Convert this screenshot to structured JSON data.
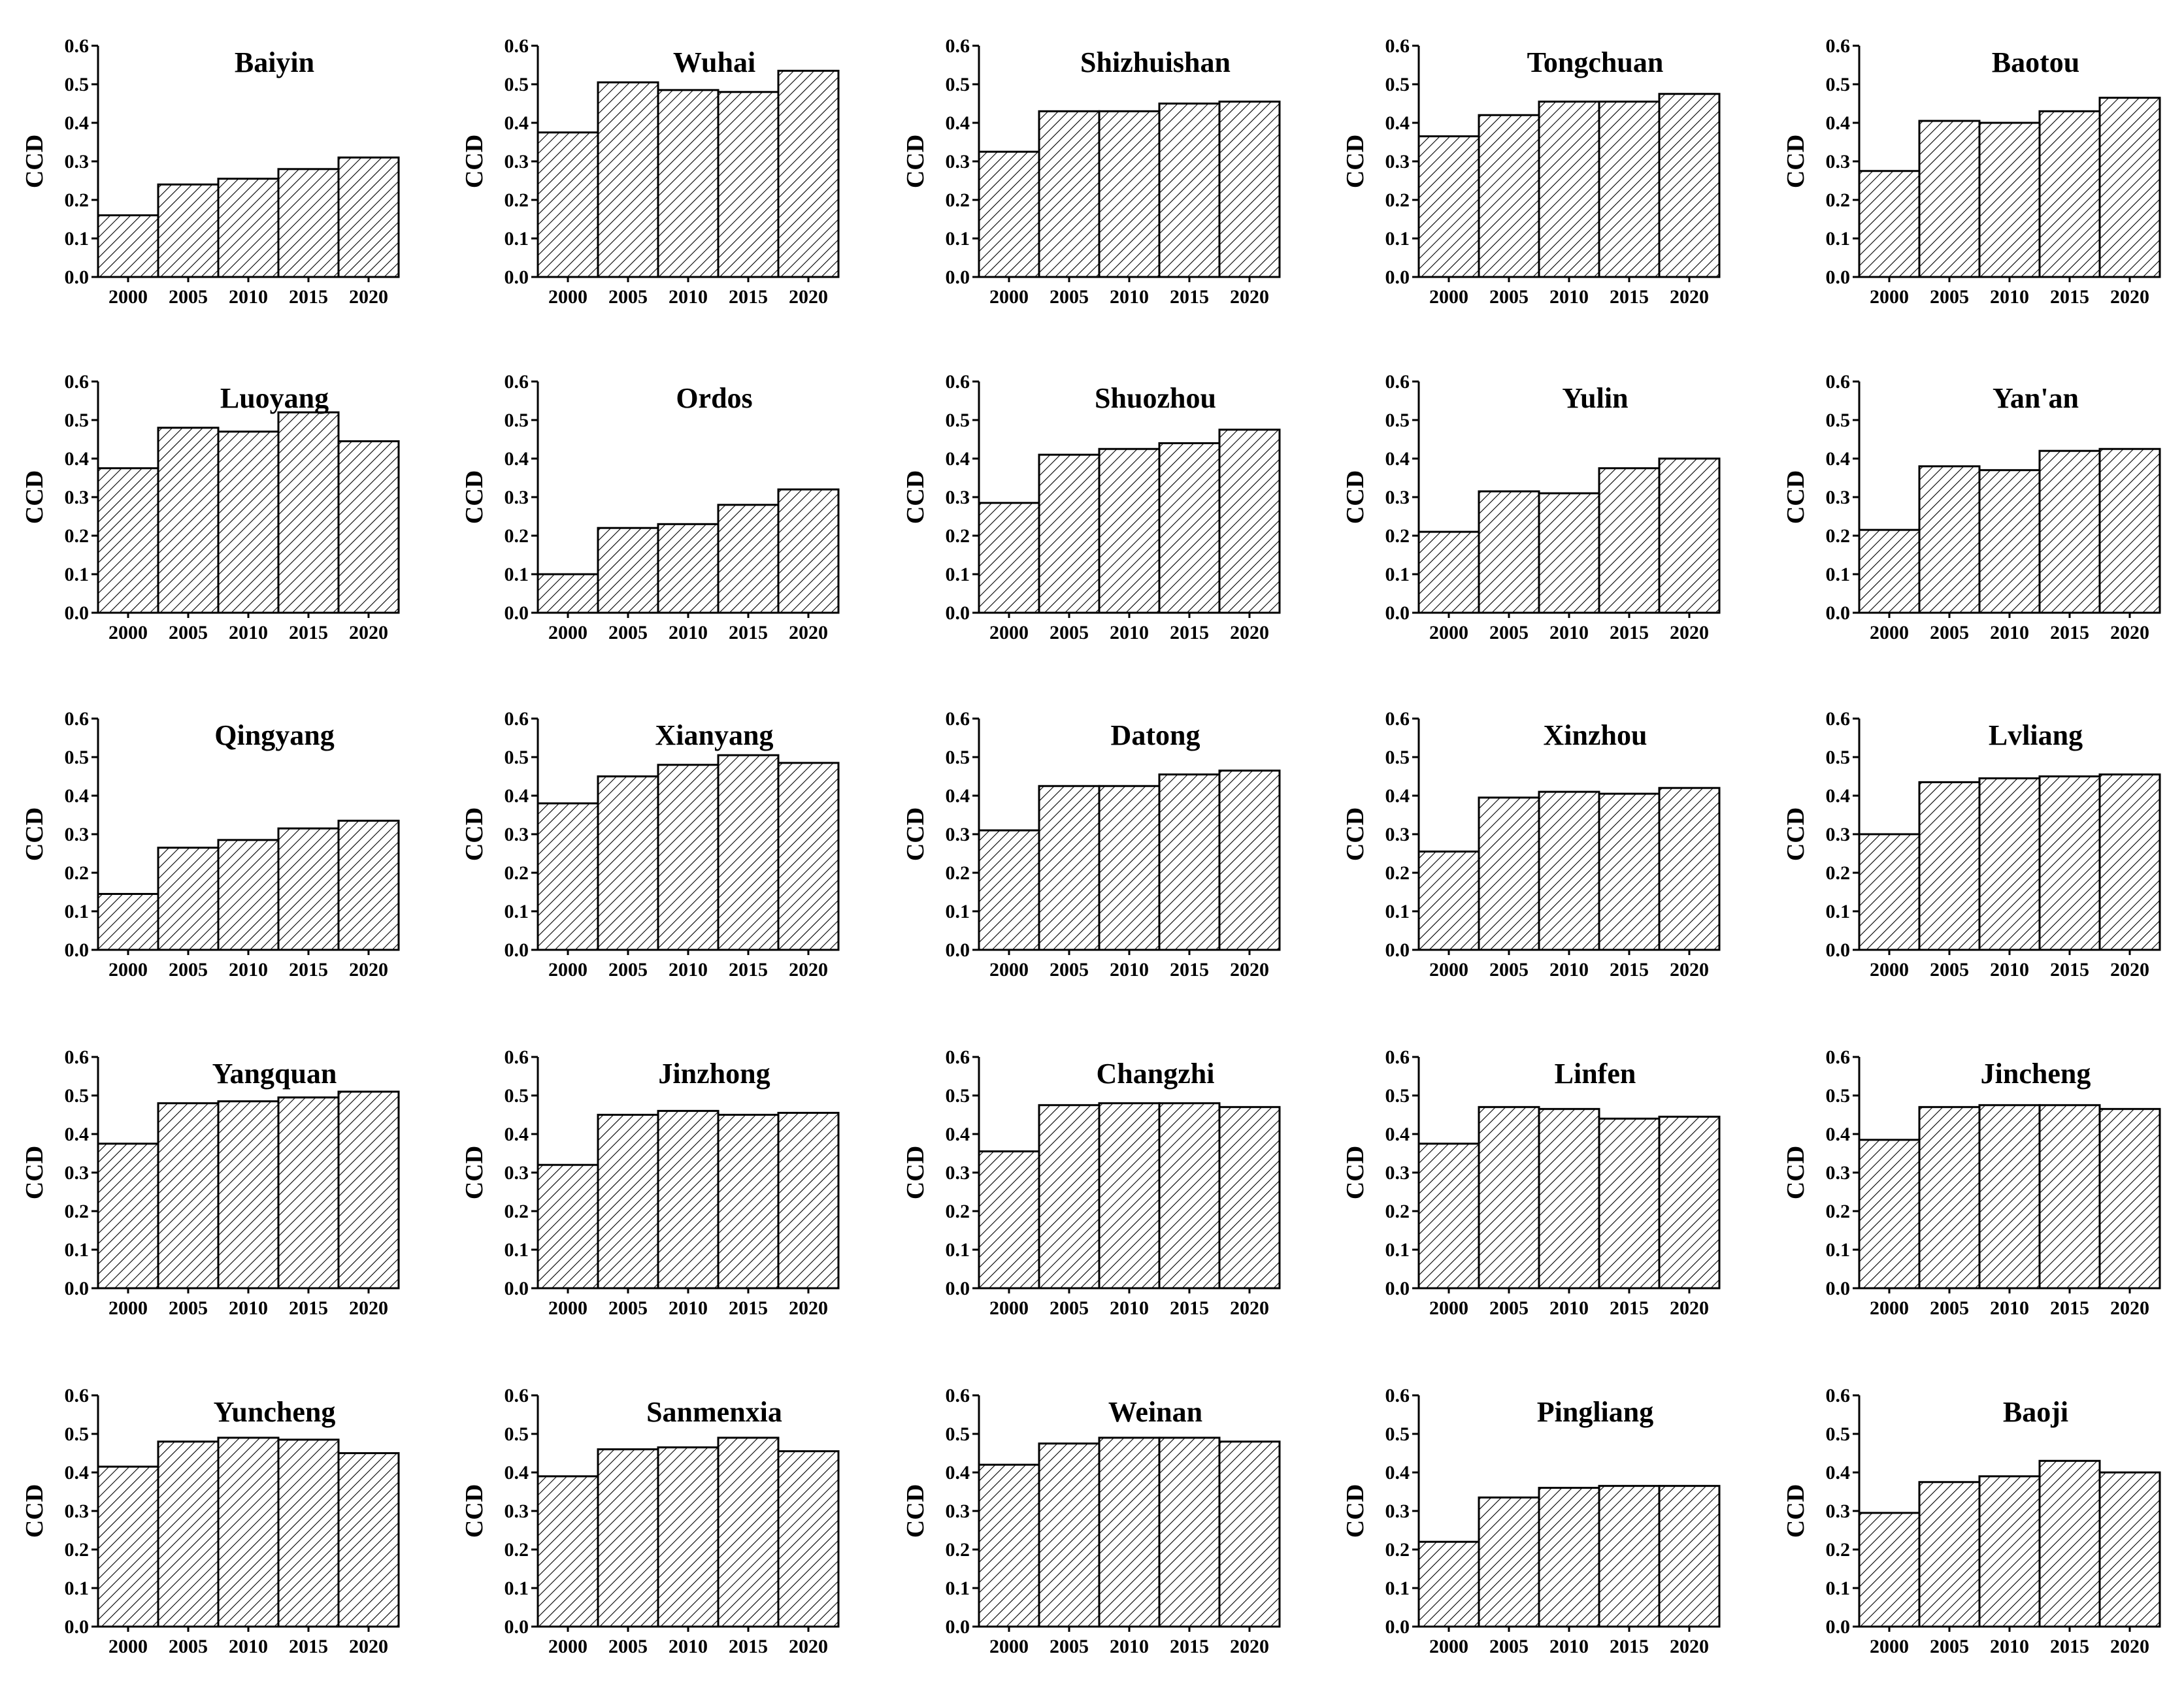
{
  "chart_data": [
    {
      "type": "bar",
      "title": "Baiyin",
      "ylabel": "CCD",
      "xlabel": "",
      "categories": [
        "2000",
        "2005",
        "2010",
        "2015",
        "2020"
      ],
      "values": [
        0.16,
        0.24,
        0.255,
        0.28,
        0.31
      ],
      "ylim": [
        0,
        0.6
      ],
      "yticks": [
        "0.0",
        "0.1",
        "0.2",
        "0.3",
        "0.4",
        "0.5",
        "0.6"
      ]
    },
    {
      "type": "bar",
      "title": "Wuhai",
      "ylabel": "CCD",
      "xlabel": "",
      "categories": [
        "2000",
        "2005",
        "2010",
        "2015",
        "2020"
      ],
      "values": [
        0.375,
        0.505,
        0.485,
        0.48,
        0.535
      ],
      "ylim": [
        0,
        0.6
      ],
      "yticks": [
        "0.0",
        "0.1",
        "0.2",
        "0.3",
        "0.4",
        "0.5",
        "0.6"
      ]
    },
    {
      "type": "bar",
      "title": "Shizhuishan",
      "ylabel": "CCD",
      "xlabel": "",
      "categories": [
        "2000",
        "2005",
        "2010",
        "2015",
        "2020"
      ],
      "values": [
        0.325,
        0.43,
        0.43,
        0.45,
        0.455
      ],
      "ylim": [
        0,
        0.6
      ],
      "yticks": [
        "0.0",
        "0.1",
        "0.2",
        "0.3",
        "0.4",
        "0.5",
        "0.6"
      ]
    },
    {
      "type": "bar",
      "title": "Tongchuan",
      "ylabel": "CCD",
      "xlabel": "",
      "categories": [
        "2000",
        "2005",
        "2010",
        "2015",
        "2020"
      ],
      "values": [
        0.365,
        0.42,
        0.455,
        0.455,
        0.475
      ],
      "ylim": [
        0,
        0.6
      ],
      "yticks": [
        "0.0",
        "0.1",
        "0.2",
        "0.3",
        "0.4",
        "0.5",
        "0.6"
      ]
    },
    {
      "type": "bar",
      "title": "Baotou",
      "ylabel": "CCD",
      "xlabel": "",
      "categories": [
        "2000",
        "2005",
        "2010",
        "2015",
        "2020"
      ],
      "values": [
        0.275,
        0.405,
        0.4,
        0.43,
        0.465
      ],
      "ylim": [
        0,
        0.6
      ],
      "yticks": [
        "0.0",
        "0.1",
        "0.2",
        "0.3",
        "0.4",
        "0.5",
        "0.6"
      ]
    },
    {
      "type": "bar",
      "title": "Luoyang",
      "ylabel": "CCD",
      "xlabel": "",
      "categories": [
        "2000",
        "2005",
        "2010",
        "2015",
        "2020"
      ],
      "values": [
        0.375,
        0.48,
        0.47,
        0.52,
        0.445
      ],
      "ylim": [
        0,
        0.6
      ],
      "yticks": [
        "0.0",
        "0.1",
        "0.2",
        "0.3",
        "0.4",
        "0.5",
        "0.6"
      ]
    },
    {
      "type": "bar",
      "title": "Ordos",
      "ylabel": "CCD",
      "xlabel": "",
      "categories": [
        "2000",
        "2005",
        "2010",
        "2015",
        "2020"
      ],
      "values": [
        0.1,
        0.22,
        0.23,
        0.28,
        0.32
      ],
      "ylim": [
        0,
        0.6
      ],
      "yticks": [
        "0.0",
        "0.1",
        "0.2",
        "0.3",
        "0.4",
        "0.5",
        "0.6"
      ]
    },
    {
      "type": "bar",
      "title": "Shuozhou",
      "ylabel": "CCD",
      "xlabel": "",
      "categories": [
        "2000",
        "2005",
        "2010",
        "2015",
        "2020"
      ],
      "values": [
        0.285,
        0.41,
        0.425,
        0.44,
        0.475
      ],
      "ylim": [
        0,
        0.6
      ],
      "yticks": [
        "0.0",
        "0.1",
        "0.2",
        "0.3",
        "0.4",
        "0.5",
        "0.6"
      ]
    },
    {
      "type": "bar",
      "title": "Yulin",
      "ylabel": "CCD",
      "xlabel": "",
      "categories": [
        "2000",
        "2005",
        "2010",
        "2015",
        "2020"
      ],
      "values": [
        0.21,
        0.315,
        0.31,
        0.375,
        0.4
      ],
      "ylim": [
        0,
        0.6
      ],
      "yticks": [
        "0.0",
        "0.1",
        "0.2",
        "0.3",
        "0.4",
        "0.5",
        "0.6"
      ]
    },
    {
      "type": "bar",
      "title": "Yan'an",
      "ylabel": "CCD",
      "xlabel": "",
      "categories": [
        "2000",
        "2005",
        "2010",
        "2015",
        "2020"
      ],
      "values": [
        0.215,
        0.38,
        0.37,
        0.42,
        0.425
      ],
      "ylim": [
        0,
        0.6
      ],
      "yticks": [
        "0.0",
        "0.1",
        "0.2",
        "0.3",
        "0.4",
        "0.5",
        "0.6"
      ]
    },
    {
      "type": "bar",
      "title": "Qingyang",
      "ylabel": "CCD",
      "xlabel": "",
      "categories": [
        "2000",
        "2005",
        "2010",
        "2015",
        "2020"
      ],
      "values": [
        0.145,
        0.265,
        0.285,
        0.315,
        0.335
      ],
      "ylim": [
        0,
        0.6
      ],
      "yticks": [
        "0.0",
        "0.1",
        "0.2",
        "0.3",
        "0.4",
        "0.5",
        "0.6"
      ]
    },
    {
      "type": "bar",
      "title": "Xianyang",
      "ylabel": "CCD",
      "xlabel": "",
      "categories": [
        "2000",
        "2005",
        "2010",
        "2015",
        "2020"
      ],
      "values": [
        0.38,
        0.45,
        0.48,
        0.505,
        0.485
      ],
      "ylim": [
        0,
        0.6
      ],
      "yticks": [
        "0.0",
        "0.1",
        "0.2",
        "0.3",
        "0.4",
        "0.5",
        "0.6"
      ]
    },
    {
      "type": "bar",
      "title": "Datong",
      "ylabel": "CCD",
      "xlabel": "",
      "categories": [
        "2000",
        "2005",
        "2010",
        "2015",
        "2020"
      ],
      "values": [
        0.31,
        0.425,
        0.425,
        0.455,
        0.465
      ],
      "ylim": [
        0,
        0.6
      ],
      "yticks": [
        "0.0",
        "0.1",
        "0.2",
        "0.3",
        "0.4",
        "0.5",
        "0.6"
      ]
    },
    {
      "type": "bar",
      "title": "Xinzhou",
      "ylabel": "CCD",
      "xlabel": "",
      "categories": [
        "2000",
        "2005",
        "2010",
        "2015",
        "2020"
      ],
      "values": [
        0.255,
        0.395,
        0.41,
        0.405,
        0.42
      ],
      "ylim": [
        0,
        0.6
      ],
      "yticks": [
        "0.0",
        "0.1",
        "0.2",
        "0.3",
        "0.4",
        "0.5",
        "0.6"
      ]
    },
    {
      "type": "bar",
      "title": "Lvliang",
      "ylabel": "CCD",
      "xlabel": "",
      "categories": [
        "2000",
        "2005",
        "2010",
        "2015",
        "2020"
      ],
      "values": [
        0.3,
        0.435,
        0.445,
        0.45,
        0.455
      ],
      "ylim": [
        0,
        0.6
      ],
      "yticks": [
        "0.0",
        "0.1",
        "0.2",
        "0.3",
        "0.4",
        "0.5",
        "0.6"
      ]
    },
    {
      "type": "bar",
      "title": "Yangquan",
      "ylabel": "CCD",
      "xlabel": "",
      "categories": [
        "2000",
        "2005",
        "2010",
        "2015",
        "2020"
      ],
      "values": [
        0.375,
        0.48,
        0.485,
        0.495,
        0.51
      ],
      "ylim": [
        0,
        0.6
      ],
      "yticks": [
        "0.0",
        "0.1",
        "0.2",
        "0.3",
        "0.4",
        "0.5",
        "0.6"
      ]
    },
    {
      "type": "bar",
      "title": "Jinzhong",
      "ylabel": "CCD",
      "xlabel": "",
      "categories": [
        "2000",
        "2005",
        "2010",
        "2015",
        "2020"
      ],
      "values": [
        0.32,
        0.45,
        0.46,
        0.45,
        0.455
      ],
      "ylim": [
        0,
        0.6
      ],
      "yticks": [
        "0.0",
        "0.1",
        "0.2",
        "0.3",
        "0.4",
        "0.5",
        "0.6"
      ]
    },
    {
      "type": "bar",
      "title": "Changzhi",
      "ylabel": "CCD",
      "xlabel": "",
      "categories": [
        "2000",
        "2005",
        "2010",
        "2015",
        "2020"
      ],
      "values": [
        0.355,
        0.475,
        0.48,
        0.48,
        0.47
      ],
      "ylim": [
        0,
        0.6
      ],
      "yticks": [
        "0.0",
        "0.1",
        "0.2",
        "0.3",
        "0.4",
        "0.5",
        "0.6"
      ]
    },
    {
      "type": "bar",
      "title": "Linfen",
      "ylabel": "CCD",
      "xlabel": "",
      "categories": [
        "2000",
        "2005",
        "2010",
        "2015",
        "2020"
      ],
      "values": [
        0.375,
        0.47,
        0.465,
        0.44,
        0.445
      ],
      "ylim": [
        0,
        0.6
      ],
      "yticks": [
        "0.0",
        "0.1",
        "0.2",
        "0.3",
        "0.4",
        "0.5",
        "0.6"
      ]
    },
    {
      "type": "bar",
      "title": "Jincheng",
      "ylabel": "CCD",
      "xlabel": "",
      "categories": [
        "2000",
        "2005",
        "2010",
        "2015",
        "2020"
      ],
      "values": [
        0.385,
        0.47,
        0.475,
        0.475,
        0.465
      ],
      "ylim": [
        0,
        0.6
      ],
      "yticks": [
        "0.0",
        "0.1",
        "0.2",
        "0.3",
        "0.4",
        "0.5",
        "0.6"
      ]
    },
    {
      "type": "bar",
      "title": "Yuncheng",
      "ylabel": "CCD",
      "xlabel": "",
      "categories": [
        "2000",
        "2005",
        "2010",
        "2015",
        "2020"
      ],
      "values": [
        0.415,
        0.48,
        0.49,
        0.485,
        0.45
      ],
      "ylim": [
        0,
        0.6
      ],
      "yticks": [
        "0.0",
        "0.1",
        "0.2",
        "0.3",
        "0.4",
        "0.5",
        "0.6"
      ]
    },
    {
      "type": "bar",
      "title": "Sanmenxia",
      "ylabel": "CCD",
      "xlabel": "",
      "categories": [
        "2000",
        "2005",
        "2010",
        "2015",
        "2020"
      ],
      "values": [
        0.39,
        0.46,
        0.465,
        0.49,
        0.455
      ],
      "ylim": [
        0,
        0.6
      ],
      "yticks": [
        "0.0",
        "0.1",
        "0.2",
        "0.3",
        "0.4",
        "0.5",
        "0.6"
      ]
    },
    {
      "type": "bar",
      "title": "Weinan",
      "ylabel": "CCD",
      "xlabel": "",
      "categories": [
        "2000",
        "2005",
        "2010",
        "2015",
        "2020"
      ],
      "values": [
        0.42,
        0.475,
        0.49,
        0.49,
        0.48
      ],
      "ylim": [
        0,
        0.6
      ],
      "yticks": [
        "0.0",
        "0.1",
        "0.2",
        "0.3",
        "0.4",
        "0.5",
        "0.6"
      ]
    },
    {
      "type": "bar",
      "title": "Pingliang",
      "ylabel": "CCD",
      "xlabel": "",
      "categories": [
        "2000",
        "2005",
        "2010",
        "2015",
        "2020"
      ],
      "values": [
        0.22,
        0.335,
        0.36,
        0.365,
        0.365
      ],
      "ylim": [
        0,
        0.6
      ],
      "yticks": [
        "0.0",
        "0.1",
        "0.2",
        "0.3",
        "0.4",
        "0.5",
        "0.6"
      ]
    },
    {
      "type": "bar",
      "title": "Baoji",
      "ylabel": "CCD",
      "xlabel": "",
      "categories": [
        "2000",
        "2005",
        "2010",
        "2015",
        "2020"
      ],
      "values": [
        0.295,
        0.375,
        0.39,
        0.43,
        0.4
      ],
      "ylim": [
        0,
        0.6
      ],
      "yticks": [
        "0.0",
        "0.1",
        "0.2",
        "0.3",
        "0.4",
        "0.5",
        "0.6"
      ]
    }
  ],
  "style": {
    "bar_fill": "#ffffff",
    "hatch_color": "#000000",
    "axis_color": "#000000",
    "background": "#ffffff"
  }
}
